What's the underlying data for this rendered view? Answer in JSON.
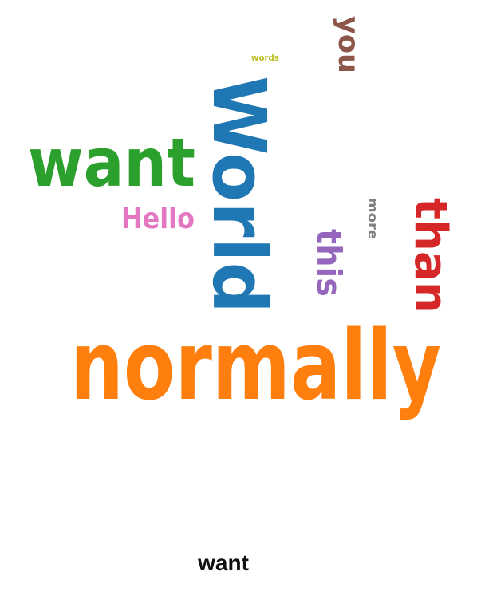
{
  "cloud": {
    "words": [
      {
        "text": "normally",
        "color": "#ff7f0e"
      },
      {
        "text": "World",
        "color": "#1f77b4"
      },
      {
        "text": "want",
        "color": "#2ca02c"
      },
      {
        "text": "than",
        "color": "#d62728"
      },
      {
        "text": "this",
        "color": "#9467bd"
      },
      {
        "text": "you",
        "color": "#8c564b"
      },
      {
        "text": "Hello",
        "color": "#e377c2"
      },
      {
        "text": "more",
        "color": "#7f7f7f"
      },
      {
        "text": "words",
        "color": "#bcbd22"
      }
    ]
  },
  "selection": {
    "label": "want"
  }
}
